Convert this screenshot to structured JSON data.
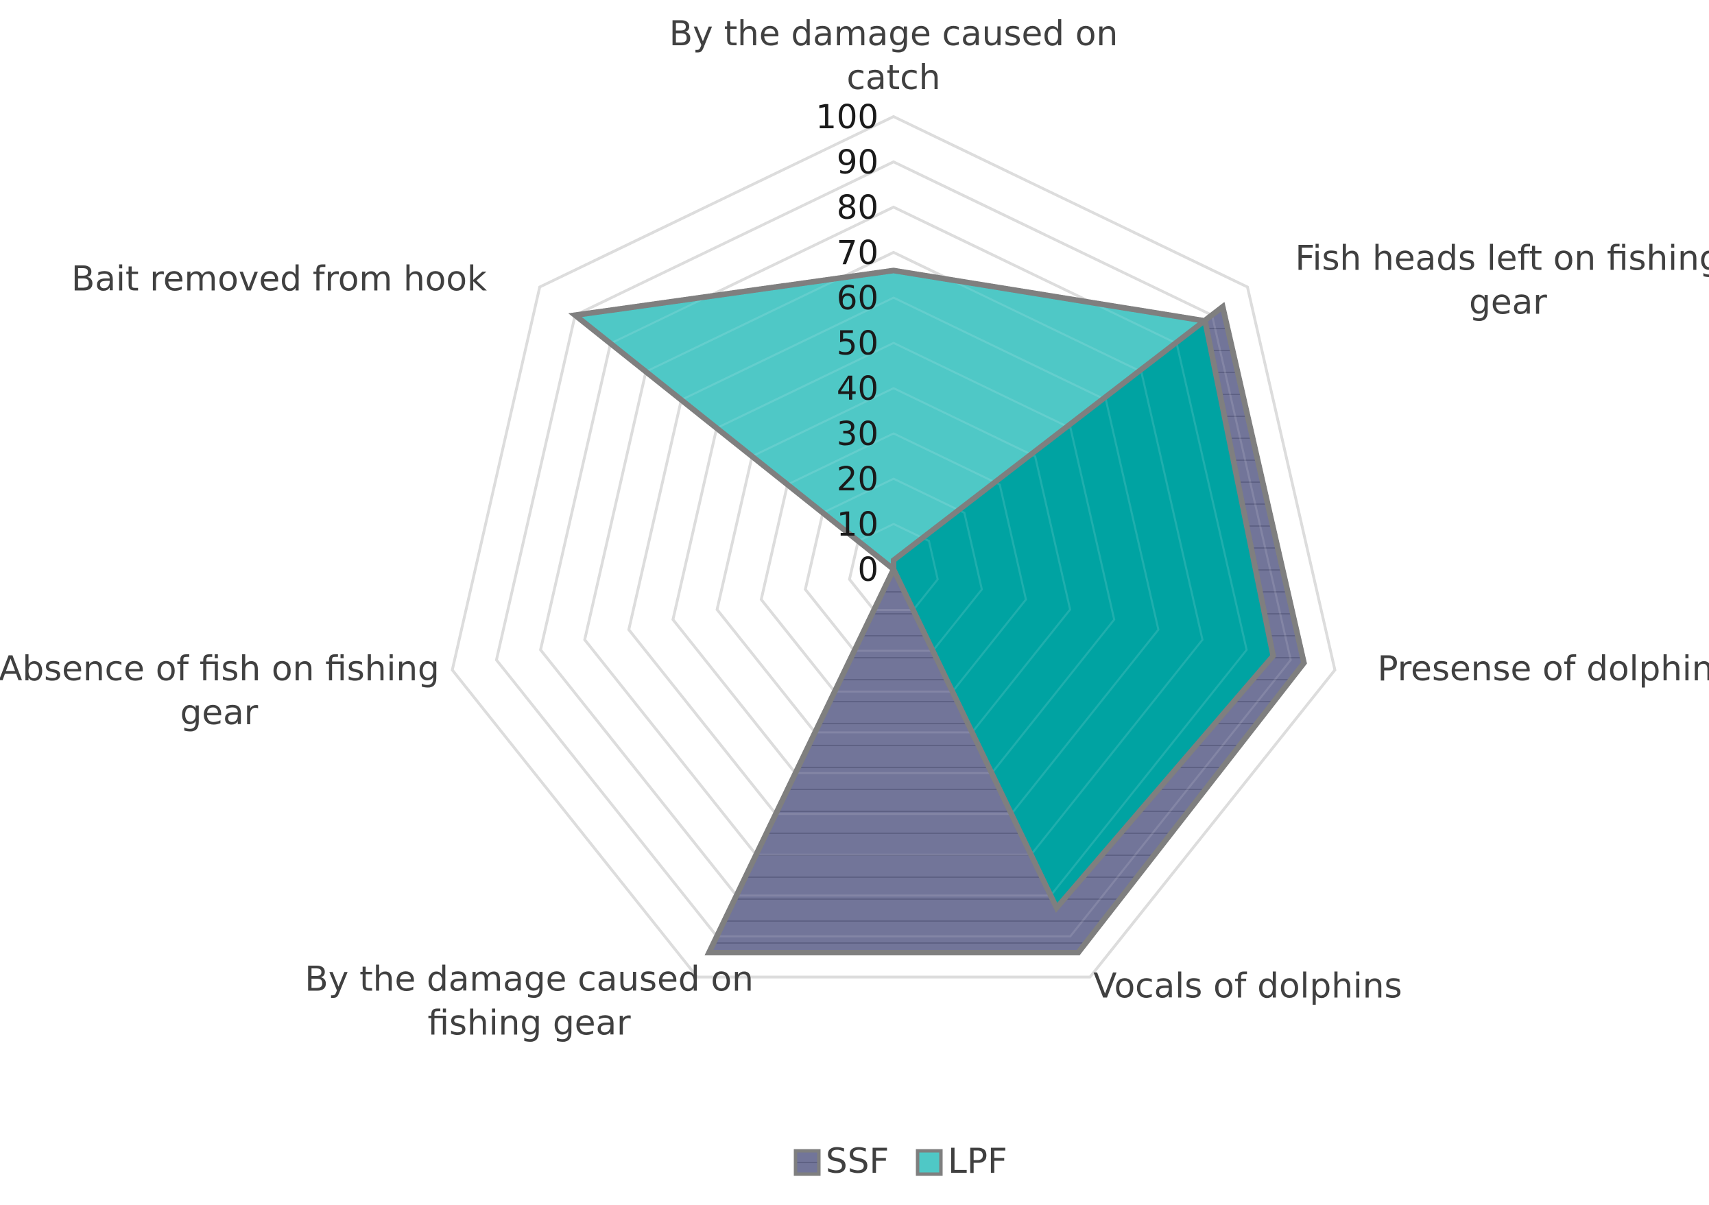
{
  "chart_data": {
    "type": "radar",
    "categories": [
      "By the damage caused on catch",
      "Fish heads left on fishing gear",
      "Presense of dolphins",
      "Vocals of dolphins",
      "By the damage caused on fishing gear",
      "Absence of fish on fishing gear",
      "Bait removed from hook"
    ],
    "category_label_lines": [
      [
        "By the damage caused on",
        "catch"
      ],
      [
        "Fish heads left on fishing",
        "gear"
      ],
      [
        "Presense of dolphins"
      ],
      [
        "Vocals of dolphins"
      ],
      [
        "By the damage caused on",
        "fishing gear"
      ],
      [
        "Absence of fish on fishing",
        "gear"
      ],
      [
        "Bait removed from hook"
      ]
    ],
    "series": [
      {
        "name": "SSF",
        "color": "#727599",
        "values": [
          2,
          93,
          93,
          94,
          94,
          0,
          0
        ]
      },
      {
        "name": "LPF",
        "color": "#4fc8c6",
        "values": [
          66,
          88,
          86,
          83,
          0,
          0,
          90
        ]
      }
    ],
    "radial_ticks": [
      "0",
      "10",
      "20",
      "30",
      "40",
      "50",
      "60",
      "70",
      "80",
      "90",
      "100"
    ],
    "rlim": [
      0,
      100
    ],
    "grid": true,
    "legend_position": "bottom"
  }
}
